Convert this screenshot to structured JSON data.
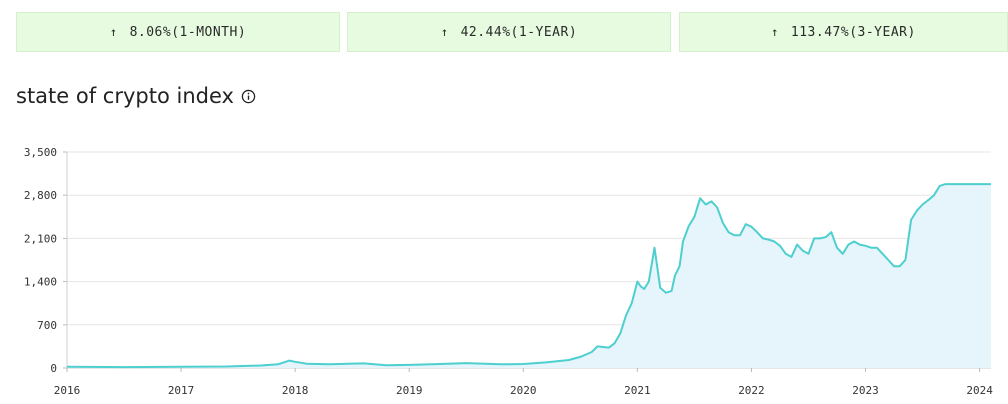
{
  "stats": [
    {
      "arrow": "↑",
      "text": "8.06%(1-MONTH)"
    },
    {
      "arrow": "↑",
      "text": "42.44%(1-YEAR)"
    },
    {
      "arrow": "↑",
      "text": "113.47%(3-YEAR)"
    }
  ],
  "title": "state of crypto index",
  "icons": {
    "info": "info-icon"
  },
  "colors": {
    "line": "#4ecfcf",
    "area": "#e5f5fb",
    "stat_bg": "#e6fbe0"
  },
  "chart_data": {
    "type": "area",
    "title": "state of crypto index",
    "xlabel": "",
    "ylabel": "",
    "xlim": [
      2016.0,
      2024.1
    ],
    "ylim": [
      0,
      3500
    ],
    "y_ticks": [
      "0",
      "700",
      "1,400",
      "2,100",
      "2,800",
      "3,500"
    ],
    "x_ticks": [
      "2016",
      "2017",
      "2018",
      "2019",
      "2020",
      "2021",
      "2022",
      "2023",
      "2024"
    ],
    "grid": true,
    "series": [
      {
        "x": [
          2016.0,
          2016.5,
          2017.0,
          2017.4,
          2017.7,
          2017.85,
          2017.95,
          2018.0,
          2018.1,
          2018.3,
          2018.6,
          2018.8,
          2019.0,
          2019.2,
          2019.5,
          2019.8,
          2020.0,
          2020.2,
          2020.4,
          2020.5,
          2020.6,
          2020.65,
          2020.7,
          2020.75,
          2020.8,
          2020.85,
          2020.9,
          2020.95,
          2021.0,
          2021.03,
          2021.06,
          2021.1,
          2021.15,
          2021.2,
          2021.25,
          2021.3,
          2021.33,
          2021.37,
          2021.4,
          2021.45,
          2021.5,
          2021.55,
          2021.6,
          2021.65,
          2021.7,
          2021.75,
          2021.8,
          2021.85,
          2021.9,
          2021.95,
          2022.0,
          2022.05,
          2022.1,
          2022.15,
          2022.2,
          2022.25,
          2022.3,
          2022.35,
          2022.4,
          2022.45,
          2022.5,
          2022.55,
          2022.6,
          2022.65,
          2022.7,
          2022.75,
          2022.8,
          2022.85,
          2022.9,
          2022.95,
          2023.0,
          2023.05,
          2023.1,
          2023.15,
          2023.2,
          2023.25,
          2023.3,
          2023.35,
          2023.4,
          2023.45,
          2023.5,
          2023.55,
          2023.6,
          2023.65,
          2023.7,
          2023.75,
          2023.8,
          2023.85,
          2023.9,
          2023.95,
          2024.0,
          2024.05,
          2024.1
        ],
        "values": [
          20,
          15,
          20,
          25,
          40,
          60,
          120,
          100,
          70,
          60,
          75,
          45,
          50,
          60,
          80,
          60,
          65,
          90,
          130,
          180,
          260,
          350,
          340,
          330,
          400,
          560,
          850,
          1050,
          1400,
          1320,
          1280,
          1400,
          1950,
          1300,
          1220,
          1250,
          1500,
          1650,
          2050,
          2300,
          2450,
          2750,
          2650,
          2700,
          2600,
          2350,
          2200,
          2150,
          2150,
          2330,
          2290,
          2200,
          2100,
          2080,
          2050,
          1980,
          1850,
          1800,
          2000,
          1900,
          1850,
          2100,
          2100,
          2120,
          2200,
          1950,
          1850,
          2000,
          2050,
          2000,
          1980,
          1950,
          1950,
          1850,
          1750,
          1650,
          1650,
          1750,
          2400,
          2550,
          2650,
          2720,
          2800,
          2950,
          2980,
          2980,
          2980,
          2980,
          2980,
          2980,
          2980,
          2980,
          2980
        ]
      }
    ]
  }
}
